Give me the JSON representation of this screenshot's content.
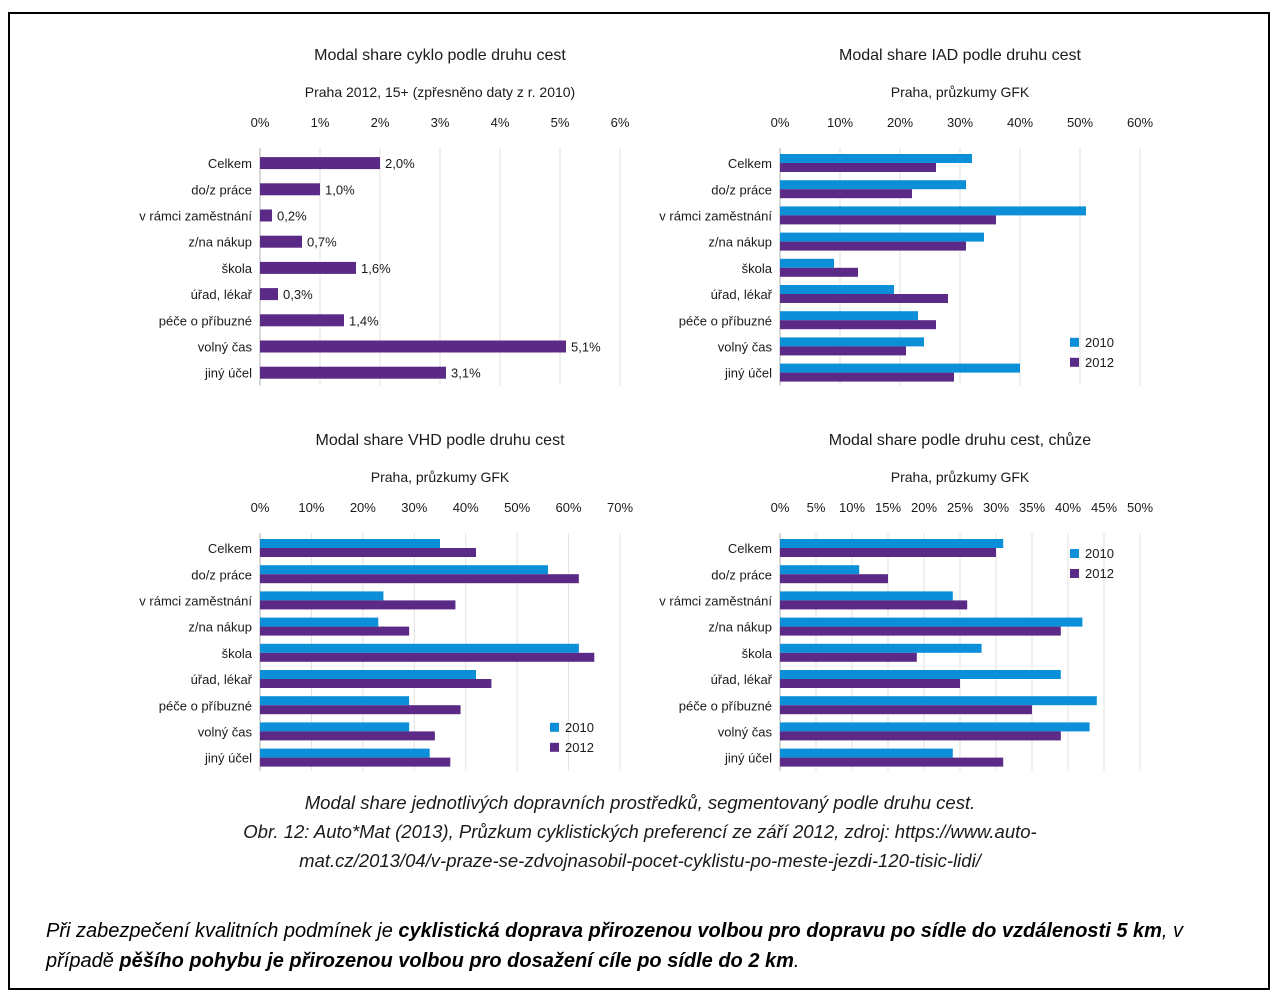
{
  "chart_data": [
    {
      "type": "bar",
      "orientation": "horizontal",
      "title": "Modal share cyklo podle druhu cest",
      "subtitle": "Praha 2012, 15+ (zpřesněno daty z r. 2010)",
      "categories": [
        "Celkem",
        "do/z práce",
        "v rámci zaměstnání",
        "z/na nákup",
        "škola",
        "úřad, lékař",
        "péče o příbuzné",
        "volný čas",
        "jiný účel"
      ],
      "xlim": [
        0,
        6
      ],
      "ticks": [
        "0%",
        "1%",
        "2%",
        "3%",
        "4%",
        "5%",
        "6%"
      ],
      "series": [
        {
          "values": [
            2.0,
            1.0,
            0.2,
            0.7,
            1.6,
            0.3,
            1.4,
            5.1,
            3.1
          ],
          "color": "#5b2a86",
          "labels": [
            "2,0%",
            "1,0%",
            "0,2%",
            "0,7%",
            "1,6%",
            "0,3%",
            "1,4%",
            "5,1%",
            "3,1%"
          ]
        }
      ],
      "legend": "none"
    },
    {
      "type": "bar",
      "orientation": "horizontal",
      "title": "Modal share IAD podle druhu cest",
      "subtitle": "Praha, průzkumy GFK",
      "categories": [
        "Celkem",
        "do/z práce",
        "v rámci zaměstnání",
        "z/na nákup",
        "škola",
        "úřad, lékař",
        "péče o příbuzné",
        "volný čas",
        "jiný účel"
      ],
      "xlim": [
        0,
        60
      ],
      "ticks": [
        "0%",
        "10%",
        "20%",
        "30%",
        "40%",
        "50%",
        "60%"
      ],
      "series": [
        {
          "name": "2010",
          "color": "#0a8fd8",
          "values": [
            32,
            31,
            51,
            34,
            9,
            19,
            23,
            24,
            40
          ]
        },
        {
          "name": "2012",
          "color": "#5b2a86",
          "values": [
            26,
            22,
            36,
            31,
            13,
            28,
            26,
            21,
            29
          ]
        }
      ],
      "legend": "bottom-right"
    },
    {
      "type": "bar",
      "orientation": "horizontal",
      "title": "Modal share VHD podle druhu cest",
      "subtitle": "Praha, průzkumy GFK",
      "categories": [
        "Celkem",
        "do/z práce",
        "v rámci zaměstnání",
        "z/na nákup",
        "škola",
        "úřad, lékař",
        "péče o příbuzné",
        "volný čas",
        "jiný účel"
      ],
      "xlim": [
        0,
        70
      ],
      "ticks": [
        "0%",
        "10%",
        "20%",
        "30%",
        "40%",
        "50%",
        "60%",
        "70%"
      ],
      "series": [
        {
          "name": "2010",
          "color": "#0a8fd8",
          "values": [
            35,
            56,
            24,
            23,
            62,
            42,
            29,
            29,
            33
          ]
        },
        {
          "name": "2012",
          "color": "#5b2a86",
          "values": [
            42,
            62,
            38,
            29,
            65,
            45,
            39,
            34,
            37
          ]
        }
      ],
      "legend": "bottom-right"
    },
    {
      "type": "bar",
      "orientation": "horizontal",
      "title": "Modal share podle druhu cest, chůze",
      "subtitle": "Praha, průzkumy GFK",
      "categories": [
        "Celkem",
        "do/z práce",
        "v rámci zaměstnání",
        "z/na nákup",
        "škola",
        "úřad, lékař",
        "péče o příbuzné",
        "volný čas",
        "jiný účel"
      ],
      "xlim": [
        0,
        50
      ],
      "ticks": [
        "0%",
        "5%",
        "10%",
        "15%",
        "20%",
        "25%",
        "30%",
        "35%",
        "40%",
        "45%",
        "50%"
      ],
      "series": [
        {
          "name": "2010",
          "color": "#0a8fd8",
          "values": [
            31,
            11,
            24,
            42,
            28,
            39,
            44,
            43,
            24
          ]
        },
        {
          "name": "2012",
          "color": "#5b2a86",
          "values": [
            30,
            15,
            26,
            39,
            19,
            25,
            35,
            39,
            31
          ]
        }
      ],
      "legend": "top-right"
    }
  ],
  "caption": {
    "line1": "Modal share jednotlivých dopravních prostředků, segmentovaný podle druhu cest.",
    "line2": "Obr. 12: Auto*Mat (2013), Průzkum cyklistických preferencí ze září 2012, zdroj: https://www.auto-",
    "line3": "mat.cz/2013/04/v-praze-se-zdvojnasobil-pocet-cyklistu-po-meste-jezdi-120-tisic-lidi/"
  },
  "note": {
    "p1": "Při zabezpečení kvalitních podmínek je ",
    "b1": "cyklistická doprava přirozenou volbou pro dopravu po sídle do vzdálenosti 5 km",
    "p2": ", v případě ",
    "b2": "pěšího pohybu je přirozenou volbou pro dosažení cíle po sídle do 2 km",
    "p3": "."
  }
}
